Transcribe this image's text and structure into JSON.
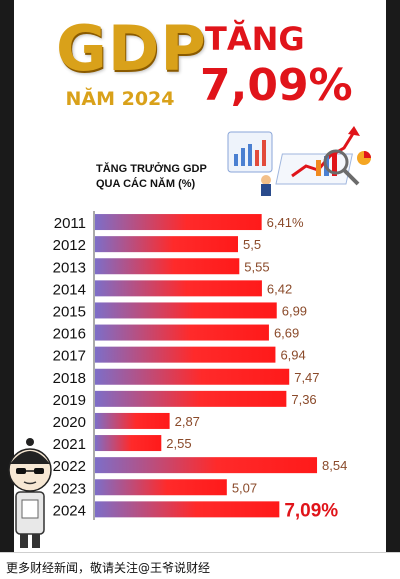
{
  "header": {
    "gdp_word": "GDP",
    "year_text": "NĂM 2024",
    "tang_text": "TĂNG",
    "headline_value": "7,09%"
  },
  "subtitle": {
    "line1": "TĂNG TRƯỞNG GDP",
    "line2": "QUA CÁC NĂM (%)"
  },
  "footer": {
    "text": "更多财经新闻，敬请关注@王爷说财经"
  },
  "colors": {
    "accent": "#e0141a",
    "gold": "#d9a11a",
    "bar_start": "#7d6ec8",
    "bar_end": "#ff1a1a",
    "value_label": "#8a4a2a"
  },
  "chart_data": {
    "type": "bar",
    "orientation": "horizontal",
    "categories": [
      "2011",
      "2012",
      "2013",
      "2014",
      "2015",
      "2016",
      "2017",
      "2018",
      "2019",
      "2020",
      "2021",
      "2022",
      "2023",
      "2024"
    ],
    "values": [
      6.41,
      5.5,
      5.55,
      6.42,
      6.99,
      6.69,
      6.94,
      7.47,
      7.36,
      2.87,
      2.55,
      8.54,
      5.07,
      7.09
    ],
    "value_labels": [
      "6,41%",
      "5,5",
      "5,55",
      "6,42",
      "6,99",
      "6,69",
      "6,94",
      "7,47",
      "7,36",
      "2,87",
      "2,55",
      "8,54",
      "5,07",
      "7,09%"
    ],
    "title": "TĂNG TRƯỞNG GDP QUA CÁC NĂM (%)",
    "xlim": [
      0,
      9.5
    ],
    "grid": false
  }
}
